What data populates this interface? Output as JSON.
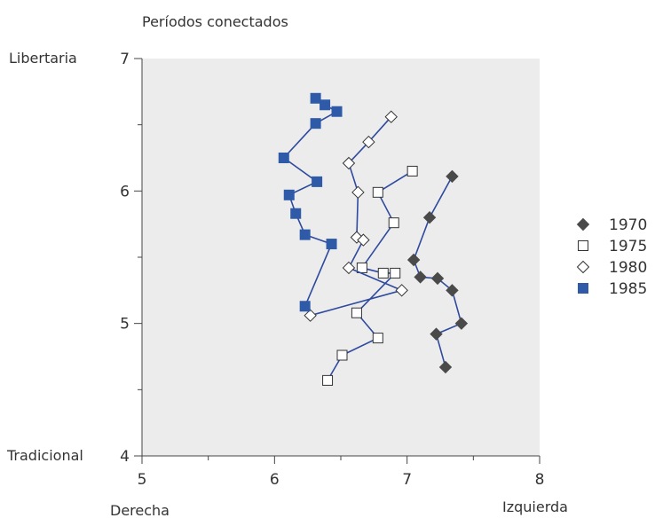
{
  "chart_data": {
    "type": "scatter",
    "title": "Períodos conectados",
    "xlim": [
      5,
      8
    ],
    "ylim": [
      4,
      7
    ],
    "x_ticks": [
      "5",
      "6",
      "7",
      "8"
    ],
    "y_ticks": [
      "4",
      "5",
      "6",
      "7"
    ],
    "x_axis_labels": {
      "left": "Derecha",
      "right": "Izquierda"
    },
    "y_axis_labels": {
      "top": "Libertaria",
      "bottom": "Tradicional"
    },
    "legend_position": "right",
    "grid": false,
    "background_color": "#ececec",
    "line_color": "#2e4a9e",
    "series": [
      {
        "name": "1970",
        "marker": "diamond-filled",
        "color": "#4a4a4a",
        "points": [
          [
            7.34,
            6.11
          ],
          [
            7.17,
            5.8
          ],
          [
            7.05,
            5.48
          ],
          [
            7.1,
            5.35
          ],
          [
            7.23,
            5.34
          ],
          [
            7.34,
            5.25
          ],
          [
            7.41,
            5.0
          ],
          [
            7.22,
            4.92
          ],
          [
            7.29,
            4.67
          ]
        ]
      },
      {
        "name": "1975",
        "marker": "square-open",
        "color": "#ffffff",
        "points": [
          [
            7.04,
            6.15
          ],
          [
            6.78,
            5.99
          ],
          [
            6.9,
            5.76
          ],
          [
            6.66,
            5.42
          ],
          [
            6.82,
            5.38
          ],
          [
            6.91,
            5.38
          ],
          [
            6.62,
            5.08
          ],
          [
            6.78,
            4.89
          ],
          [
            6.51,
            4.76
          ],
          [
            6.4,
            4.57
          ]
        ]
      },
      {
        "name": "1980",
        "marker": "diamond-open",
        "color": "#ffffff",
        "points": [
          [
            6.88,
            6.56
          ],
          [
            6.71,
            6.37
          ],
          [
            6.56,
            6.21
          ],
          [
            6.63,
            5.99
          ],
          [
            6.62,
            5.65
          ],
          [
            6.67,
            5.63
          ],
          [
            6.56,
            5.42
          ],
          [
            6.96,
            5.25
          ],
          [
            6.27,
            5.06
          ]
        ]
      },
      {
        "name": "1985",
        "marker": "square-filled",
        "color": "#2e5aa8",
        "points": [
          [
            6.31,
            6.7
          ],
          [
            6.38,
            6.65
          ],
          [
            6.47,
            6.6
          ],
          [
            6.31,
            6.51
          ],
          [
            6.07,
            6.25
          ],
          [
            6.32,
            6.07
          ],
          [
            6.11,
            5.97
          ],
          [
            6.16,
            5.83
          ],
          [
            6.23,
            5.67
          ],
          [
            6.43,
            5.6
          ],
          [
            6.23,
            5.13
          ]
        ]
      }
    ]
  }
}
